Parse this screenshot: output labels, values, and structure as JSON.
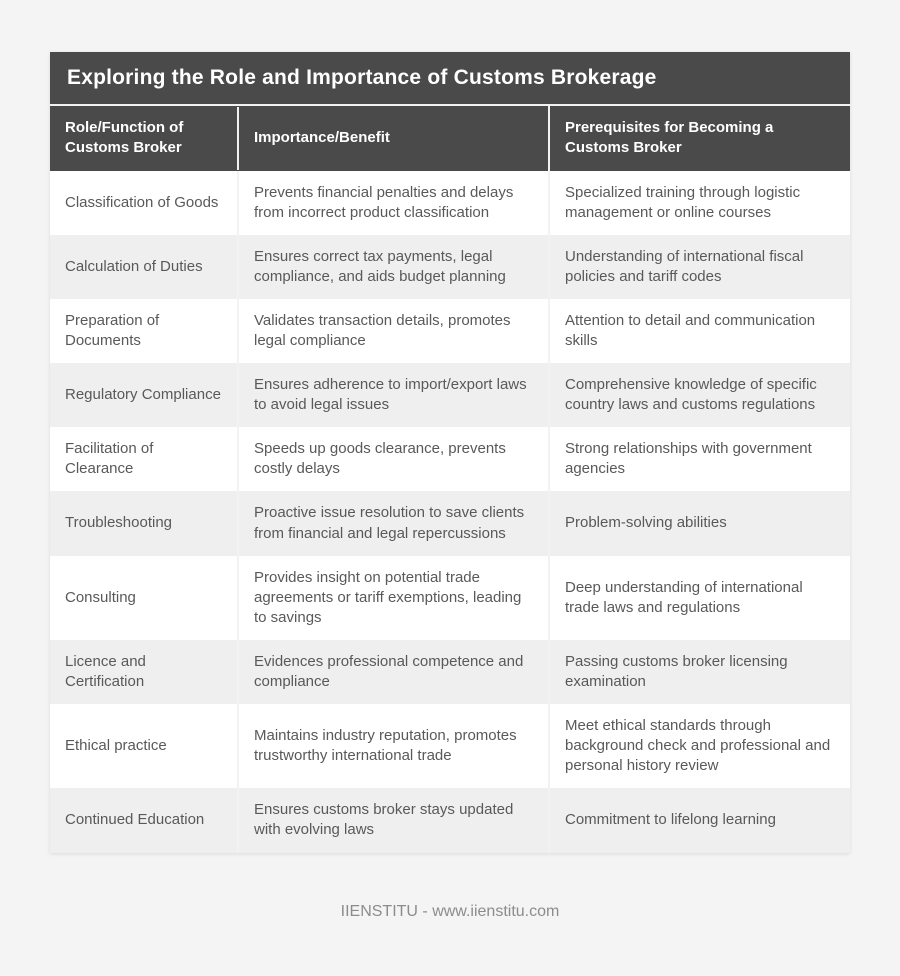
{
  "page": {
    "background": "#f4f4f5",
    "footer_text": "IIENSTITU - www.iienstitu.com"
  },
  "colors": {
    "title_bar_bg": "#4a4a4a",
    "header_row_bg": "#4a4a4a",
    "header_text": "#ffffff",
    "row_white": "#ffffff",
    "row_alt": "#efefef",
    "body_text": "#58595b",
    "footer_text_color": "#8c8c8c",
    "separator": "#f2f2f3"
  },
  "chart_data": {
    "type": "table",
    "title": "Exploring the Role and Importance of Customs Brokerage",
    "columns": [
      "Role/Function of Customs Broker",
      "Importance/Benefit",
      "Prerequisites for Becoming a Customs Broker"
    ],
    "rows": [
      [
        "Classification of Goods",
        "Prevents financial penalties and delays from incorrect product classification",
        "Specialized training through logistic management or online courses"
      ],
      [
        "Calculation of Duties",
        "Ensures correct tax payments, legal compliance, and aids budget planning",
        "Understanding of international fiscal policies and tariff codes"
      ],
      [
        "Preparation of Documents",
        "Validates transaction details, promotes legal compliance",
        "Attention to detail and communication skills"
      ],
      [
        "Regulatory Compliance",
        "Ensures adherence to import/export laws to avoid legal issues",
        "Comprehensive knowledge of specific country laws and customs regulations"
      ],
      [
        "Facilitation of Clearance",
        "Speeds up goods clearance, prevents costly delays",
        "Strong relationships with government agencies"
      ],
      [
        "Troubleshooting",
        "Proactive issue resolution to save clients from financial and legal repercussions",
        "Problem-solving abilities"
      ],
      [
        "Consulting",
        "Provides insight on potential trade agreements or tariff exemptions, leading to savings",
        "Deep understanding of international trade laws and regulations"
      ],
      [
        "Licence and Certification",
        "Evidences professional competence and compliance",
        "Passing customs broker licensing examination"
      ],
      [
        "Ethical practice",
        "Maintains industry reputation, promotes trustworthy international trade",
        "Meet ethical standards through background check and professional and personal history review"
      ],
      [
        "Continued Education",
        "Ensures customs broker stays updated with evolving laws",
        "Commitment to lifelong learning"
      ]
    ]
  }
}
